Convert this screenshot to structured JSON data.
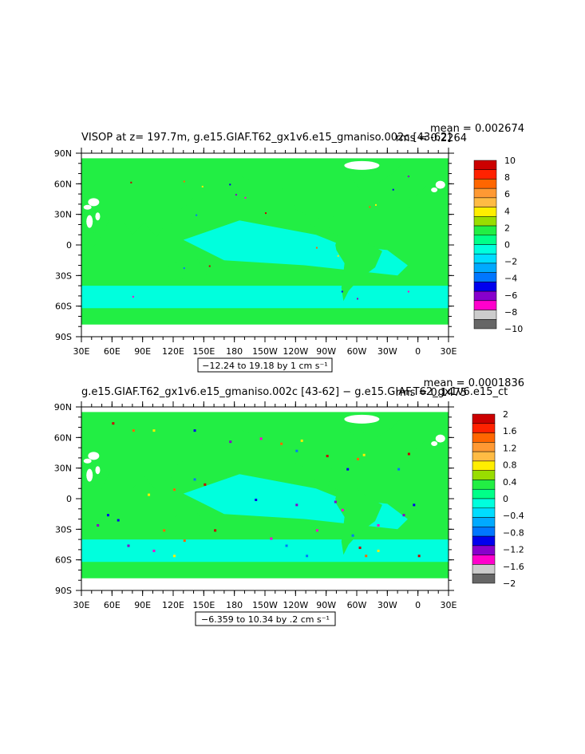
{
  "chart_data": [
    {
      "type": "heatmap",
      "title": "VISOP at z= 197.7m, g.e15.GIAF.T62_gx1v6.e15_gmaniso.002c [43-62]",
      "stats": {
        "mean": "mean = 0.002674",
        "rms": "rms = 0.2264"
      },
      "range_label": "−12.24 to 19.18 by 1 cm s⁻¹",
      "x_ticks": [
        "30E",
        "60E",
        "90E",
        "120E",
        "150E",
        "180",
        "150W",
        "120W",
        "90W",
        "60W",
        "30W",
        "0",
        "30E"
      ],
      "y_ticks": [
        "90N",
        "60N",
        "30N",
        "0",
        "30S",
        "60S",
        "90S"
      ],
      "colorbar": {
        "labels": [
          "10",
          "8",
          "6",
          "4",
          "2",
          "0",
          "−2",
          "−4",
          "−6",
          "−8",
          "−10"
        ],
        "colors": [
          "#cc0000",
          "#ff2200",
          "#ff6600",
          "#ff9933",
          "#ffbb44",
          "#ffee00",
          "#99dd00",
          "#22ee44",
          "#00ff88",
          "#00ffdd",
          "#00ddff",
          "#00aaff",
          "#0077ff",
          "#0000ee",
          "#8800cc",
          "#ff00cc",
          "#cccccc",
          "#666666"
        ]
      },
      "field": {
        "land_value": 0,
        "ocean_value": -1
      }
    },
    {
      "type": "heatmap",
      "title": "g.e15.GIAF.T62_gx1v6.e15_gmaniso.002c [43-62] − g.e15.GIAF.T62_gx1v6.e15_ct",
      "stats": {
        "mean": "mean = 0.0001836",
        "rms": "rms = 0.1475"
      },
      "range_label": "−6.359 to 10.34 by .2 cm s⁻¹",
      "x_ticks": [
        "30E",
        "60E",
        "90E",
        "120E",
        "150E",
        "180",
        "150W",
        "120W",
        "90W",
        "60W",
        "30W",
        "0",
        "30E"
      ],
      "y_ticks": [
        "90N",
        "60N",
        "30N",
        "0",
        "30S",
        "60S",
        "90S"
      ],
      "colorbar": {
        "labels": [
          "2",
          "1.6",
          "1.2",
          "0.8",
          "0.4",
          "0",
          "−0.4",
          "−0.8",
          "−1.2",
          "−1.6",
          "−2"
        ],
        "colors": [
          "#cc0000",
          "#ff2200",
          "#ff6600",
          "#ff9933",
          "#ffbb44",
          "#ffee00",
          "#99dd00",
          "#22ee44",
          "#00ff88",
          "#00ffdd",
          "#00ddff",
          "#00aaff",
          "#0077ff",
          "#0000ee",
          "#8800cc",
          "#ff00cc",
          "#cccccc",
          "#666666"
        ]
      },
      "field": {
        "land_value": 0,
        "ocean_value": -0.2
      }
    }
  ]
}
